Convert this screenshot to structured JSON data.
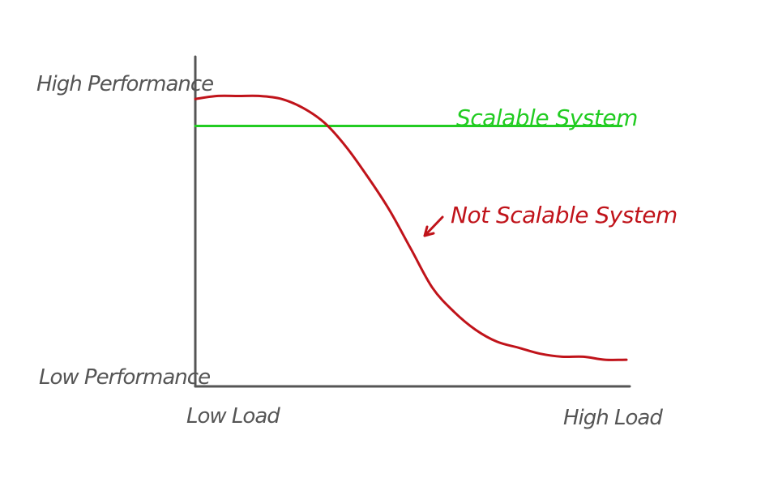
{
  "chart_data": {
    "type": "line",
    "x_axis": {
      "min_label": "Low Load",
      "max_label": "High Load",
      "range": [
        0,
        1
      ]
    },
    "y_axis": {
      "min_label": "Low Performance",
      "max_label": "High Performance",
      "range": [
        0,
        1
      ]
    },
    "grid": false,
    "series": [
      {
        "name": "Scalable System",
        "color": "#22cc22",
        "points": [
          [
            0,
            0.85
          ],
          [
            1,
            0.85
          ]
        ]
      },
      {
        "name": "Not Scalable System",
        "color": "#c0131a",
        "points": [
          [
            0,
            0.94
          ],
          [
            0.05,
            0.95
          ],
          [
            0.1,
            0.95
          ],
          [
            0.15,
            0.95
          ],
          [
            0.2,
            0.94
          ],
          [
            0.25,
            0.91
          ],
          [
            0.3,
            0.86
          ],
          [
            0.35,
            0.78
          ],
          [
            0.4,
            0.68
          ],
          [
            0.45,
            0.57
          ],
          [
            0.5,
            0.44
          ],
          [
            0.55,
            0.31
          ],
          [
            0.6,
            0.23
          ],
          [
            0.65,
            0.17
          ],
          [
            0.7,
            0.13
          ],
          [
            0.75,
            0.11
          ],
          [
            0.8,
            0.09
          ],
          [
            0.85,
            0.08
          ],
          [
            0.9,
            0.08
          ],
          [
            0.95,
            0.07
          ],
          [
            1,
            0.07
          ]
        ]
      }
    ],
    "annotations": [
      {
        "text": "Scalable System",
        "color": "#22cc22",
        "anchor": "above-green-line"
      },
      {
        "text": "Not Scalable System",
        "color": "#c0131a",
        "anchor": "right-of-red-curve",
        "arrow": true
      }
    ]
  }
}
